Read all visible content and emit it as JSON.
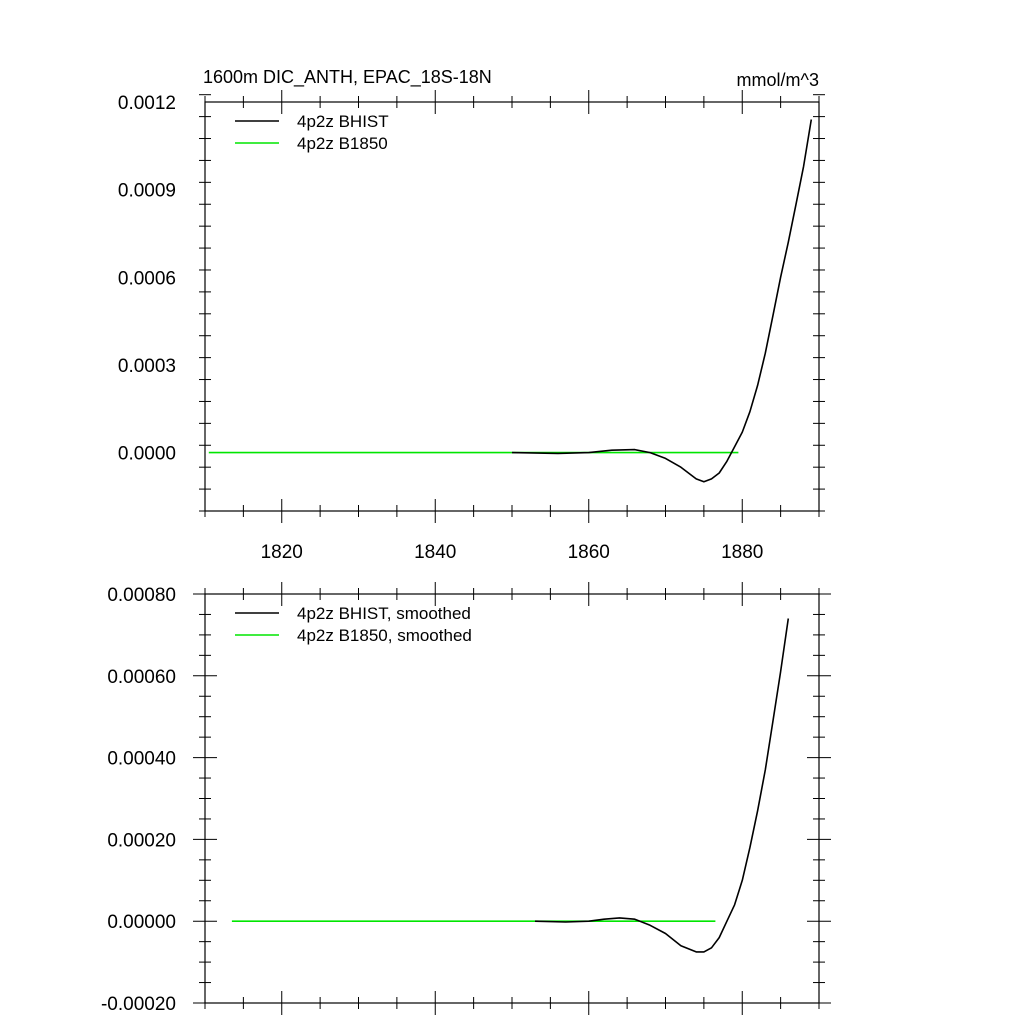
{
  "colors": {
    "bhist": "#000000",
    "b1850": "#00e600"
  },
  "chart_data": [
    {
      "type": "line",
      "title_left": "1600m DIC_ANTH, EPAC_18S-18N",
      "title_right": "mmol/m^3",
      "xlim": [
        1810,
        1890
      ],
      "ylim": [
        -0.0002,
        0.0012
      ],
      "xticks": [
        1820,
        1840,
        1860,
        1880
      ],
      "xtick_labels": [
        "1820",
        "1840",
        "1860",
        "1880"
      ],
      "yticks": [
        0.0,
        0.0003,
        0.0006,
        0.0009,
        0.0012
      ],
      "ytick_labels": [
        "0.0000",
        "0.0003",
        "0.0006",
        "0.0009",
        "0.0012"
      ],
      "grid": false,
      "legend_placement": "top-left",
      "series": [
        {
          "name": "4p2z BHIST",
          "color_key": "bhist",
          "x": [
            1850,
            1856,
            1860,
            1863,
            1866,
            1868,
            1870,
            1872,
            1874,
            1875,
            1876,
            1877,
            1878,
            1879,
            1880,
            1881,
            1882,
            1883,
            1884,
            1885,
            1886,
            1887,
            1888,
            1889
          ],
          "y": [
            0.0,
            -3e-06,
            0.0,
            8e-06,
            1e-05,
            0.0,
            -2e-05,
            -5e-05,
            -9e-05,
            -0.0001,
            -9e-05,
            -7e-05,
            -3e-05,
            2e-05,
            7e-05,
            0.00014,
            0.00023,
            0.00034,
            0.00047,
            0.0006,
            0.00072,
            0.00085,
            0.00098,
            0.00114
          ]
        },
        {
          "name": "4p2z B1850",
          "color_key": "b1850",
          "x": [
            1810.5,
            1879.5
          ],
          "y": [
            0.0,
            0.0
          ]
        }
      ]
    },
    {
      "type": "line",
      "xlim": [
        1810,
        1890
      ],
      "ylim": [
        -0.0002,
        0.0008
      ],
      "xticks": [
        1820,
        1840,
        1860,
        1880
      ],
      "yticks": [
        -0.0002,
        0.0,
        0.0002,
        0.0004,
        0.0006,
        0.0008
      ],
      "ytick_labels": [
        "-0.00020",
        "0.00000",
        "0.00020",
        "0.00040",
        "0.00060",
        "0.00080"
      ],
      "grid": false,
      "legend_placement": "top-left",
      "series": [
        {
          "name": "4p2z BHIST, smoothed",
          "color_key": "bhist",
          "x": [
            1853,
            1857,
            1860,
            1862,
            1864,
            1866,
            1868,
            1870,
            1872,
            1874,
            1875,
            1876,
            1877,
            1878,
            1879,
            1880,
            1881,
            1882,
            1883,
            1884,
            1885,
            1886
          ],
          "y": [
            0.0,
            -2e-06,
            0.0,
            5e-06,
            8e-06,
            5e-06,
            -1e-05,
            -3e-05,
            -6e-05,
            -7.5e-05,
            -7.5e-05,
            -6.5e-05,
            -4e-05,
            0.0,
            4e-05,
            0.0001,
            0.00018,
            0.00027,
            0.00037,
            0.00049,
            0.00061,
            0.00074
          ]
        },
        {
          "name": "4p2z B1850, smoothed",
          "color_key": "b1850",
          "x": [
            1813.5,
            1876.5
          ],
          "y": [
            0.0,
            0.0
          ]
        }
      ]
    }
  ]
}
